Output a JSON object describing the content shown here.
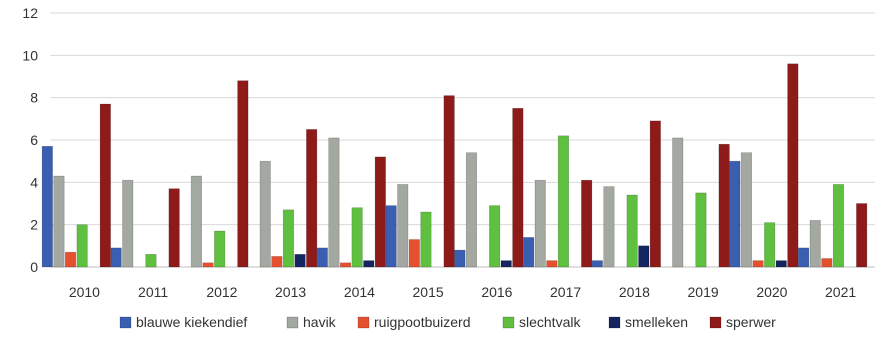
{
  "chart_data": {
    "type": "bar",
    "title": "",
    "xlabel": "",
    "ylabel": "",
    "ylim": [
      0,
      12
    ],
    "yticks": [
      0,
      2,
      4,
      6,
      8,
      10,
      12
    ],
    "grid": true,
    "legend_position": "bottom",
    "categories": [
      "2010",
      "2011",
      "2012",
      "2013",
      "2014",
      "2015",
      "2016",
      "2017",
      "2018",
      "2019",
      "2020",
      "2021"
    ],
    "series": [
      {
        "name": "blauwe kiekendief",
        "color": "#3a5fb0",
        "values": [
          5.7,
          0.9,
          0.0,
          0.0,
          0.9,
          2.9,
          0.8,
          1.4,
          0.3,
          0.0,
          5.0,
          0.9
        ]
      },
      {
        "name": "havik",
        "color": "#a3a8a0",
        "values": [
          4.3,
          4.1,
          4.3,
          5.0,
          6.1,
          3.9,
          5.4,
          4.1,
          3.8,
          6.1,
          5.4,
          2.2
        ]
      },
      {
        "name": "ruigpootbuizerd",
        "color": "#e5502f",
        "values": [
          0.7,
          0.0,
          0.2,
          0.5,
          0.2,
          1.3,
          0.0,
          0.3,
          0.0,
          0.0,
          0.3,
          0.4
        ]
      },
      {
        "name": "slechtvalk",
        "color": "#5fbf3f",
        "values": [
          2.0,
          0.6,
          1.7,
          2.7,
          2.8,
          2.6,
          2.9,
          6.2,
          3.4,
          3.5,
          2.1,
          3.9
        ]
      },
      {
        "name": "smelleken",
        "color": "#142560",
        "values": [
          0.0,
          0.0,
          0.0,
          0.6,
          0.3,
          0.0,
          0.3,
          0.0,
          1.0,
          0.0,
          0.3,
          0.0
        ]
      },
      {
        "name": "sperwer",
        "color": "#8e1a1a",
        "values": [
          7.7,
          3.7,
          8.8,
          6.5,
          5.2,
          8.1,
          7.5,
          4.1,
          6.9,
          5.8,
          9.6,
          3.0
        ]
      }
    ]
  }
}
